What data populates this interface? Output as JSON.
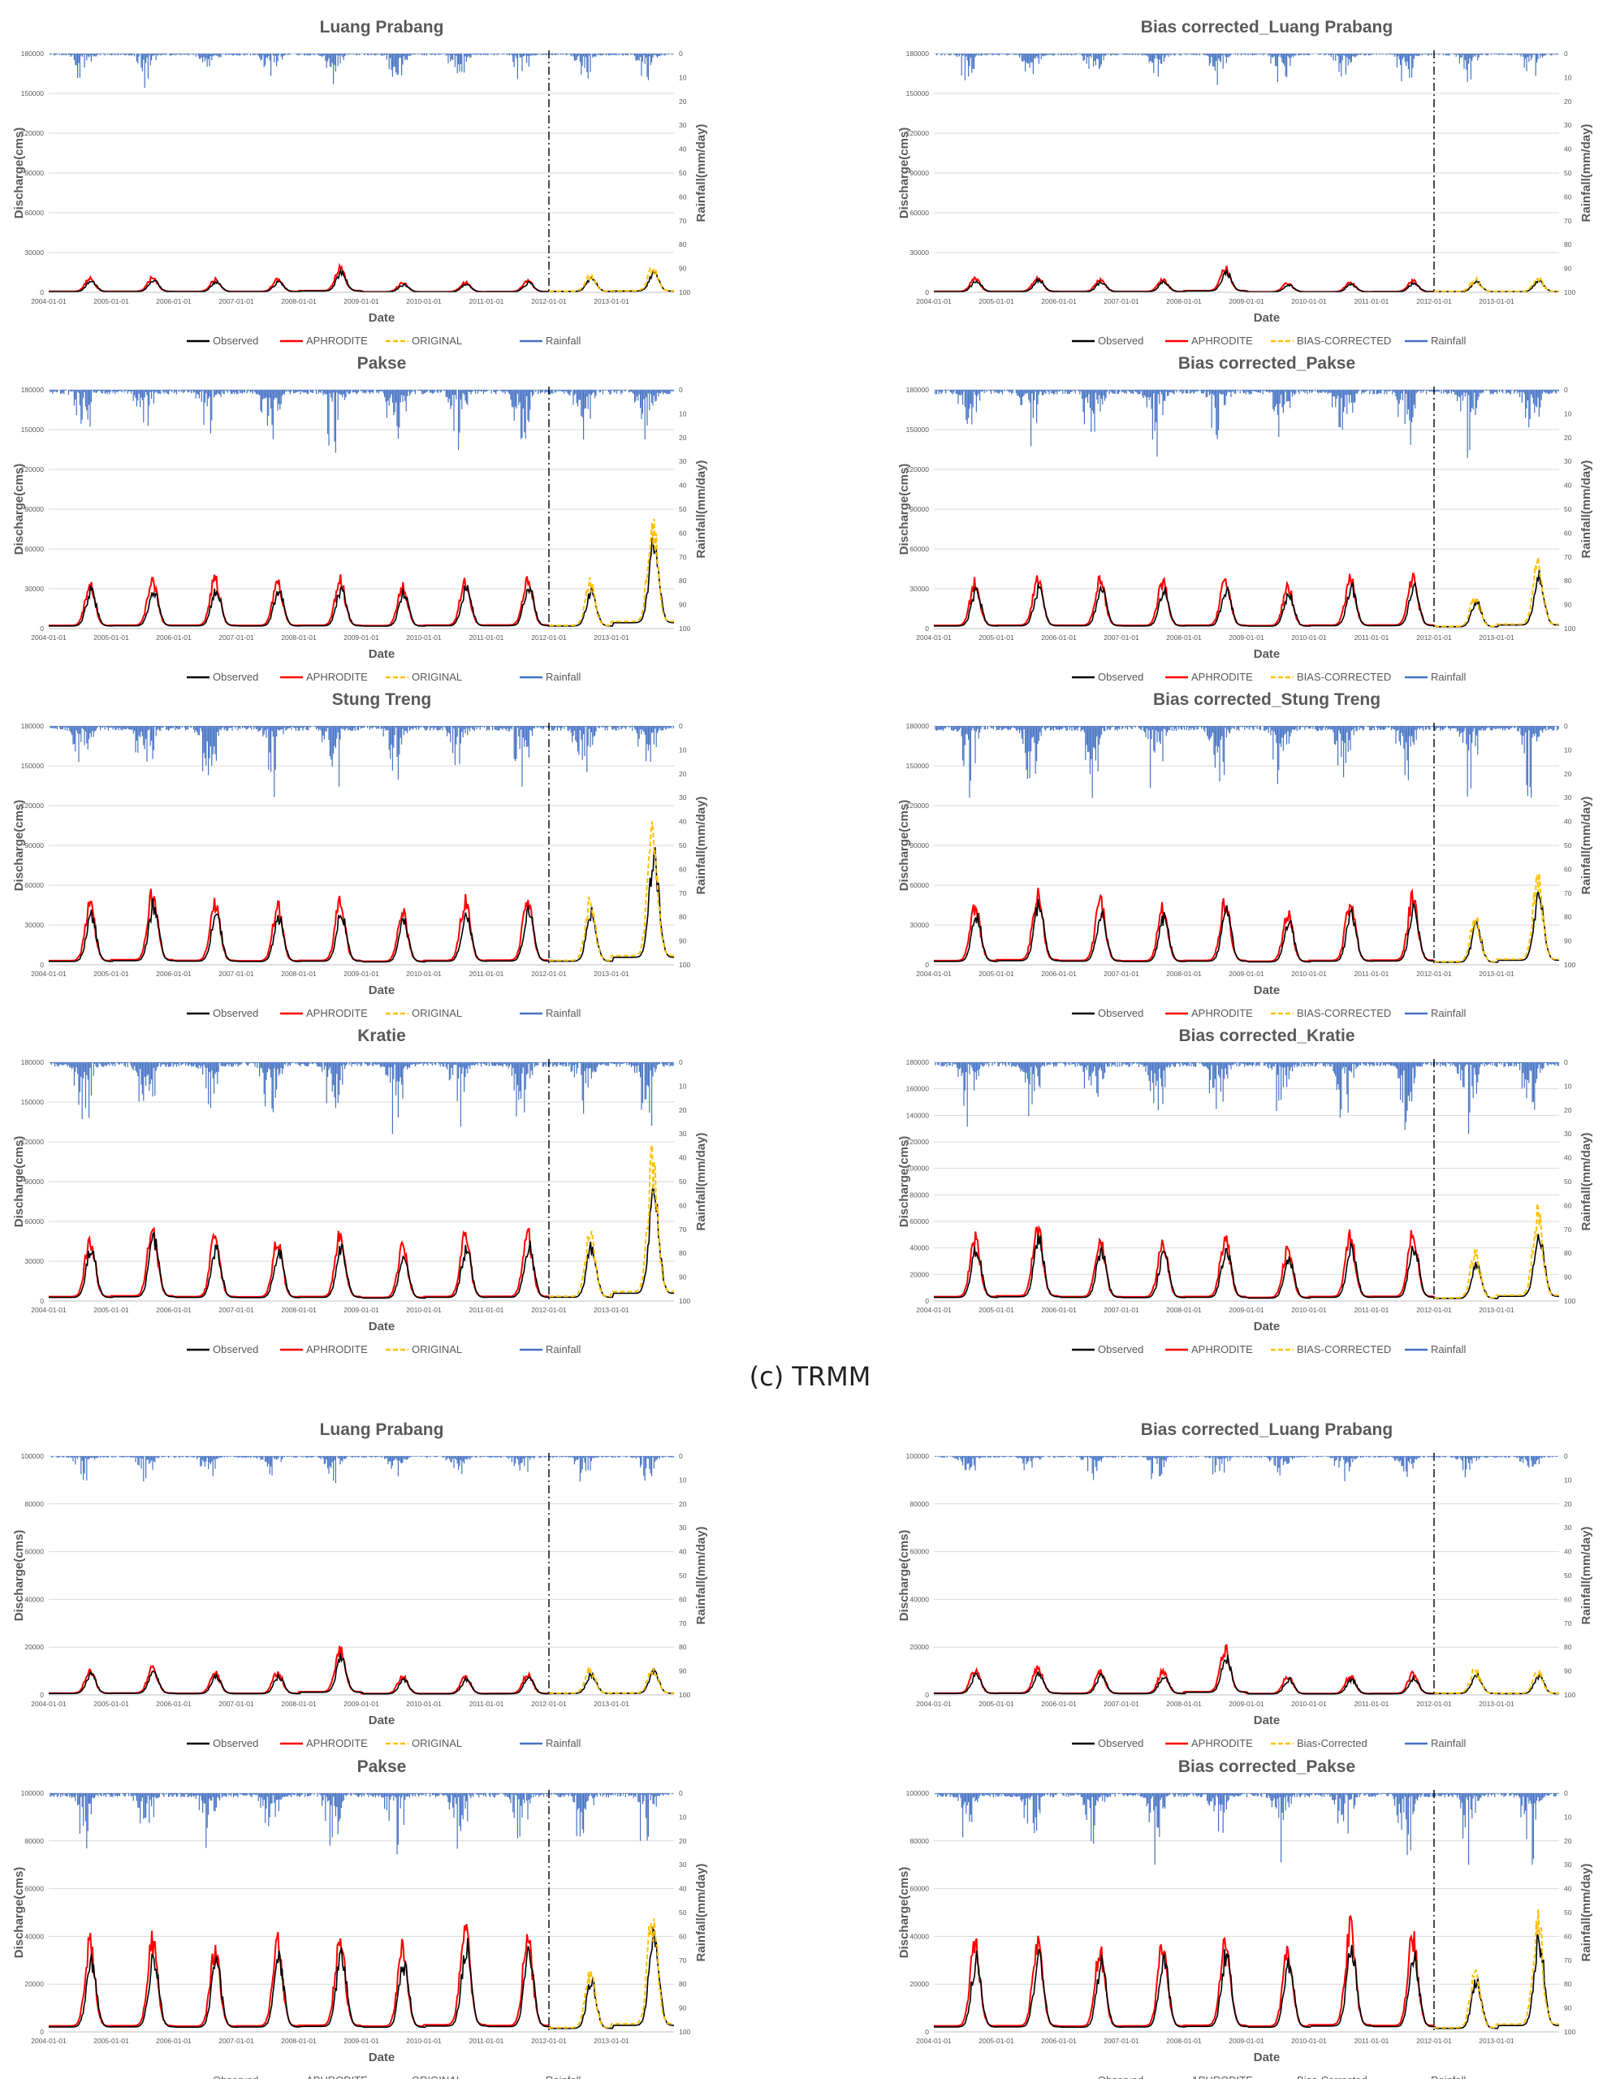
{
  "caption": "(c) TRMM",
  "common": {
    "xlabel": "Date",
    "ylabel_left": "Discharge(cms)",
    "ylabel_right": "Rainfall(mm/day)",
    "date_ticks": [
      "2004-01-01",
      "2005-01-01",
      "2006-01-01",
      "2007-01-01",
      "2008-01-01",
      "2009-01-01",
      "2010-01-01",
      "2011-01-01",
      "2012-01-01",
      "2013-01-01"
    ],
    "rain_ticks": [
      "0",
      "10",
      "20",
      "30",
      "40",
      "50",
      "60",
      "70",
      "80",
      "90",
      "100"
    ],
    "split_date": "2012-01-01",
    "colors": {
      "observed": "#000000",
      "aphrodite": "#ff0000",
      "original": "#ffc000",
      "rainfall": "#4472c4",
      "grid": "#d9d9d9"
    }
  },
  "chart_data": [
    {
      "type": "line",
      "title": "Luang Prabang",
      "ylim": [
        0,
        180000
      ],
      "yticks": [
        "0",
        "30000",
        "60000",
        "90000",
        "120000",
        "150000",
        "180000"
      ],
      "y2lim": [
        0,
        100
      ],
      "peaks": [
        12000,
        13000,
        11000,
        11000,
        21000,
        8000,
        8500,
        10000,
        15000,
        20000
      ],
      "rain_scale": 0.7,
      "legend": [
        "Observed",
        "APHRODITE",
        "ORIGINAL",
        "Rainfall"
      ],
      "xlabel": "Date",
      "ylabel": "Discharge(cms)",
      "y2label": "Rainfall(mm/day)"
    },
    {
      "type": "line",
      "title": "Bias corrected_Luang Prabang",
      "ylim": [
        0,
        180000
      ],
      "yticks": [
        "0",
        "30000",
        "60000",
        "90000",
        "120000",
        "150000",
        "180000"
      ],
      "y2lim": [
        0,
        100
      ],
      "peaks": [
        12000,
        13000,
        11000,
        11000,
        21000,
        8000,
        8500,
        10000,
        11000,
        12000
      ],
      "rain_scale": 0.7,
      "legend": [
        "Observed",
        "APHRODITE",
        "BIAS-CORRECTED",
        "Rainfall"
      ],
      "xlabel": "Date",
      "ylabel": "Discharge(cms)",
      "y2label": "Rainfall(mm/day)"
    },
    {
      "type": "line",
      "title": "Pakse",
      "ylim": [
        0,
        180000
      ],
      "yticks": [
        "0",
        "30000",
        "60000",
        "90000",
        "120000",
        "150000",
        "180000"
      ],
      "y2lim": [
        0,
        100
      ],
      "peaks": [
        40000,
        42000,
        42000,
        40000,
        42000,
        37000,
        43000,
        45000,
        40000,
        90000
      ],
      "rain_scale": 1.6,
      "legend": [
        "Observed",
        "APHRODITE",
        "ORIGINAL",
        "Rainfall"
      ],
      "xlabel": "Date",
      "ylabel": "Discharge(cms)",
      "y2label": "Rainfall(mm/day)"
    },
    {
      "type": "line",
      "title": "Bias corrected_Pakse",
      "ylim": [
        0,
        180000
      ],
      "yticks": [
        "0",
        "30000",
        "60000",
        "90000",
        "120000",
        "150000",
        "180000"
      ],
      "y2lim": [
        0,
        100
      ],
      "peaks": [
        40000,
        42000,
        42000,
        40000,
        42000,
        37000,
        43000,
        45000,
        28000,
        55000
      ],
      "rain_scale": 1.6,
      "legend": [
        "Observed",
        "APHRODITE",
        "BIAS-CORRECTED",
        "Rainfall"
      ],
      "xlabel": "Date",
      "ylabel": "Discharge(cms)",
      "y2label": "Rainfall(mm/day)"
    },
    {
      "type": "line",
      "title": "Stung Treng",
      "ylim": [
        0,
        180000
      ],
      "yticks": [
        "0",
        "30000",
        "60000",
        "90000",
        "120000",
        "150000",
        "180000"
      ],
      "y2lim": [
        0,
        100
      ],
      "peaks": [
        52000,
        63000,
        55000,
        50000,
        55000,
        45000,
        55000,
        58000,
        55000,
        115000
      ],
      "rain_scale": 1.7,
      "legend": [
        "Observed",
        "APHRODITE",
        "ORIGINAL",
        "Rainfall"
      ],
      "xlabel": "Date",
      "ylabel": "Discharge(cms)",
      "y2label": "Rainfall(mm/day)"
    },
    {
      "type": "line",
      "title": "Bias corrected_Stung Treng",
      "ylim": [
        0,
        180000
      ],
      "yticks": [
        "0",
        "30000",
        "60000",
        "90000",
        "120000",
        "150000",
        "180000"
      ],
      "y2lim": [
        0,
        100
      ],
      "peaks": [
        52000,
        63000,
        55000,
        50000,
        55000,
        45000,
        55000,
        58000,
        40000,
        70000
      ],
      "rain_scale": 1.7,
      "legend": [
        "Observed",
        "APHRODITE",
        "BIAS-CORRECTED",
        "Rainfall"
      ],
      "xlabel": "Date",
      "ylabel": "Discharge(cms)",
      "y2label": "Rainfall(mm/day)"
    },
    {
      "type": "line",
      "title": "Kratie",
      "ylim": [
        0,
        180000
      ],
      "yticks": [
        "0",
        "30000",
        "60000",
        "90000",
        "120000",
        "150000",
        "180000"
      ],
      "y2lim": [
        0,
        100
      ],
      "peaks": [
        55000,
        65000,
        55000,
        52000,
        56000,
        45000,
        56000,
        58000,
        58000,
        118000
      ],
      "rain_scale": 1.7,
      "legend": [
        "Observed",
        "APHRODITE",
        "ORIGINAL",
        "Rainfall"
      ],
      "xlabel": "Date",
      "ylabel": "Discharge(cms)",
      "y2label": "Rainfall(mm/day)"
    },
    {
      "type": "line",
      "title": "Bias corrected_Kratie",
      "ylim": [
        0,
        180000
      ],
      "yticks": [
        "0",
        "20000",
        "40000",
        "60000",
        "80000",
        "100000",
        "120000",
        "140000",
        "160000",
        "180000"
      ],
      "y2lim": [
        0,
        100
      ],
      "peaks": [
        55000,
        65000,
        55000,
        52000,
        56000,
        45000,
        56000,
        58000,
        40000,
        72000
      ],
      "rain_scale": 1.7,
      "legend": [
        "Observed",
        "APHRODITE",
        "BIAS-CORRECTED",
        "Rainfall"
      ],
      "xlabel": "Date",
      "ylabel": "Discharge(cms)",
      "y2label": "Rainfall(mm/day)"
    },
    {
      "type": "line",
      "title": "Luang Prabang",
      "ylim": [
        0,
        100000
      ],
      "yticks": [
        "0",
        "20000",
        "40000",
        "60000",
        "80000",
        "100000"
      ],
      "y2lim": [
        0,
        100
      ],
      "peaks": [
        12000,
        13000,
        11000,
        11000,
        22000,
        9000,
        9000,
        10000,
        12000,
        13000
      ],
      "rain_scale": 0.6,
      "legend": [
        "Observed",
        "APHRODITE",
        "ORIGINAL",
        "Rainfall"
      ],
      "xlabel": "Date",
      "ylabel": "Discharge(cms)",
      "y2label": "Rainfall(mm/day)"
    },
    {
      "type": "line",
      "title": "Bias corrected_Luang Prabang",
      "ylim": [
        0,
        100000
      ],
      "yticks": [
        "0",
        "20000",
        "40000",
        "60000",
        "80000",
        "100000"
      ],
      "y2lim": [
        0,
        100
      ],
      "peaks": [
        12000,
        13000,
        11000,
        11000,
        22000,
        9000,
        9000,
        10000,
        12000,
        11000
      ],
      "rain_scale": 0.6,
      "legend": [
        "Observed",
        "APHRODITE",
        "Bias-Corrected",
        "Rainfall"
      ],
      "xlabel": "Date",
      "ylabel": "Discharge(cms)",
      "y2label": "Rainfall(mm/day)"
    },
    {
      "type": "line",
      "title": "Pakse",
      "ylim": [
        0,
        100000
      ],
      "yticks": [
        "0",
        "20000",
        "40000",
        "60000",
        "80000",
        "100000"
      ],
      "y2lim": [
        0,
        100
      ],
      "peaks": [
        42000,
        43000,
        40000,
        42000,
        46000,
        40000,
        50000,
        45000,
        30000,
        56000
      ],
      "rain_scale": 1.5,
      "legend": [
        "Observed",
        "APHRODITE",
        "ORIGINAL",
        "Rainfall"
      ],
      "xlabel": "Date",
      "ylabel": "Discharge(cms)",
      "y2label": "Rainfall(mm/day)"
    },
    {
      "type": "line",
      "title": "Bias corrected_Pakse",
      "ylim": [
        0,
        100000
      ],
      "yticks": [
        "0",
        "20000",
        "40000",
        "60000",
        "80000",
        "100000"
      ],
      "y2lim": [
        0,
        100
      ],
      "peaks": [
        42000,
        43000,
        40000,
        42000,
        46000,
        40000,
        50000,
        45000,
        30000,
        54000
      ],
      "rain_scale": 1.5,
      "legend": [
        "Observed",
        "APHRODITE",
        "Bias-Corrected",
        "Rainfall"
      ],
      "xlabel": "Date",
      "ylabel": "Discharge(cms)",
      "y2label": "Rainfall(mm/day)"
    }
  ]
}
